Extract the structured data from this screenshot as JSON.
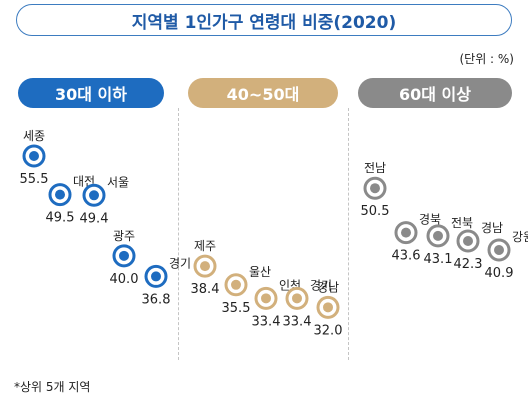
{
  "title": "지역별 1인가구 연령대 비중(2020)",
  "unit_note": "(단위 : %)",
  "footnote": "*상위 5개 지역",
  "colors": {
    "title_border": "#3d7cc0",
    "title_text": "#1f5aa6",
    "group_30": "#1e6cc0",
    "group_4050": "#d2b07c",
    "group_60": "#8a8a8a"
  },
  "chart_data": {
    "type": "scatter",
    "title": "지역별 1인가구 연령대 비중(2020)",
    "unit": "%",
    "ylim": [
      30,
      58
    ],
    "groups": [
      {
        "name": "30대 이하",
        "color": "#1e6cc0",
        "points": [
          {
            "region": "세종",
            "value": 55.5
          },
          {
            "region": "대전",
            "value": 49.5
          },
          {
            "region": "서울",
            "value": 49.4
          },
          {
            "region": "광주",
            "value": 40.0
          },
          {
            "region": "경기",
            "value": 36.8
          }
        ]
      },
      {
        "name": "40~50대",
        "color": "#d2b07c",
        "points": [
          {
            "region": "제주",
            "value": 38.4
          },
          {
            "region": "울산",
            "value": 35.5
          },
          {
            "region": "인천",
            "value": 33.4
          },
          {
            "region": "경기",
            "value": 33.4
          },
          {
            "region": "경남",
            "value": 32.0
          }
        ]
      },
      {
        "name": "60대 이상",
        "color": "#8a8a8a",
        "points": [
          {
            "region": "전남",
            "value": 50.5
          },
          {
            "region": "경북",
            "value": 43.6
          },
          {
            "region": "전북",
            "value": 43.1
          },
          {
            "region": "경남",
            "value": 42.3
          },
          {
            "region": "강원",
            "value": 40.9
          }
        ]
      }
    ]
  }
}
